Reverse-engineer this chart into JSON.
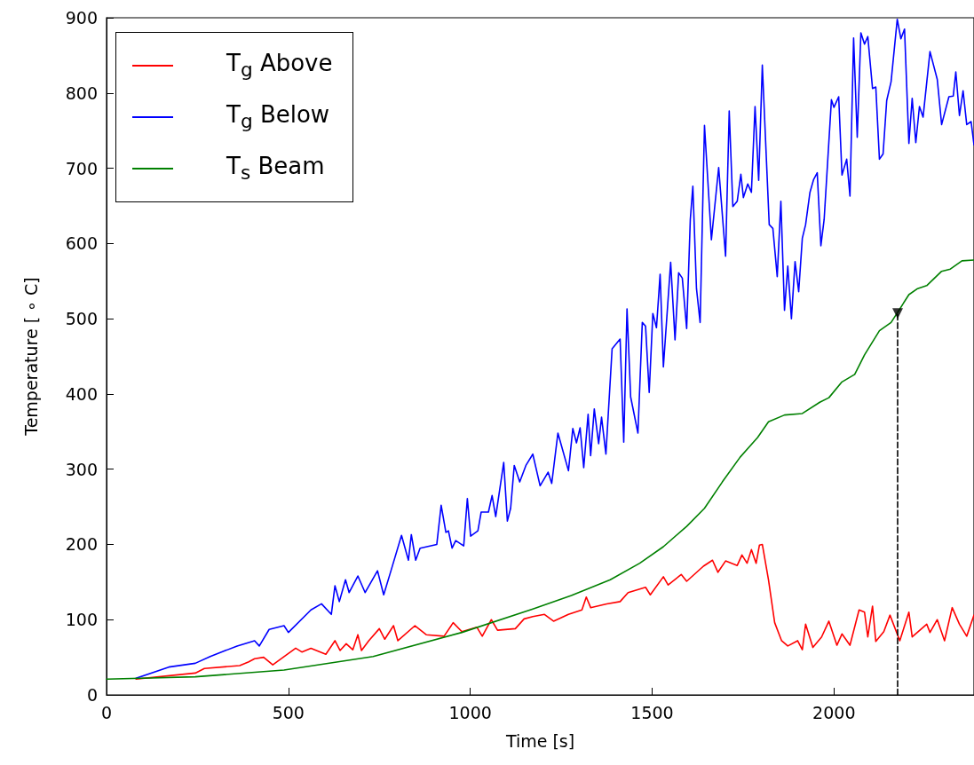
{
  "chart_data": {
    "type": "line",
    "xlabel": "Time [s]",
    "ylabel": "Temperature [ ∘ C]",
    "xlim": [
      0,
      2385
    ],
    "xticks": [
      0,
      500,
      1000,
      1500,
      2000
    ],
    "ylim": [
      0,
      900
    ],
    "yticks": [
      0,
      100,
      200,
      300,
      400,
      500,
      600,
      700,
      800,
      900
    ],
    "grid": false,
    "legend": "top left",
    "marker": "none",
    "line_style": "solid",
    "series": [
      {
        "name": "T$_{g}$ Above",
        "color": "#ff0000",
        "x": [
          81,
          244,
          269,
          366,
          391,
          407,
          432,
          457,
          520,
          537,
          562,
          603,
          628,
          642,
          659,
          677,
          691,
          701,
          721,
          750,
          765,
          789,
          801,
          848,
          879,
          928,
          953,
          977,
          1018,
          1033,
          1058,
          1075,
          1124,
          1148,
          1172,
          1204,
          1229,
          1270,
          1307,
          1319,
          1331,
          1375,
          1412,
          1434,
          1482,
          1495,
          1531,
          1544,
          1580,
          1595,
          1641,
          1666,
          1681,
          1702,
          1734,
          1747,
          1761,
          1773,
          1786,
          1795,
          1803,
          1820,
          1837,
          1856,
          1873,
          1900,
          1913,
          1922,
          1942,
          1966,
          1986,
          2008,
          2022,
          2044,
          2069,
          2084,
          2093,
          2106,
          2115,
          2137,
          2154,
          2181,
          2206,
          2215,
          2255,
          2264,
          2284,
          2304,
          2325,
          2345,
          2365,
          2385
        ],
        "values": [
          21,
          29,
          35,
          39,
          44,
          48,
          50,
          40,
          62,
          57,
          62,
          54,
          72,
          59,
          68,
          60,
          80,
          59,
          72,
          88,
          74,
          92,
          72,
          92,
          80,
          78,
          96,
          84,
          90,
          78,
          100,
          86,
          88,
          101,
          104,
          107,
          98,
          107,
          113,
          130,
          116,
          121,
          124,
          136,
          143,
          133,
          157,
          146,
          160,
          151,
          171,
          179,
          163,
          178,
          172,
          186,
          175,
          193,
          175,
          199,
          200,
          153,
          96,
          72,
          65,
          72,
          60,
          94,
          63,
          77,
          98,
          66,
          81,
          66,
          113,
          110,
          77,
          118,
          71,
          84,
          106,
          72,
          110,
          77,
          94,
          83,
          100,
          72,
          116,
          94,
          78,
          106
        ]
      },
      {
        "name": "T$_{g}$ Below",
        "color": "#0000ff",
        "x": [
          81,
          171,
          244,
          285,
          359,
          407,
          420,
          447,
          488,
          500,
          562,
          591,
          618,
          628,
          640,
          657,
          667,
          691,
          711,
          745,
          762,
          782,
          811,
          830,
          838,
          850,
          862,
          908,
          920,
          933,
          940,
          950,
          960,
          982,
          992,
          1001,
          1021,
          1030,
          1050,
          1060,
          1070,
          1092,
          1102,
          1111,
          1121,
          1136,
          1153,
          1172,
          1192,
          1214,
          1224,
          1241,
          1270,
          1282,
          1292,
          1302,
          1312,
          1324,
          1331,
          1341,
          1353,
          1361,
          1373,
          1390,
          1412,
          1422,
          1431,
          1441,
          1461,
          1473,
          1482,
          1492,
          1502,
          1512,
          1522,
          1531,
          1551,
          1563,
          1573,
          1583,
          1595,
          1605,
          1612,
          1622,
          1632,
          1644,
          1663,
          1683,
          1702,
          1712,
          1722,
          1734,
          1744,
          1751,
          1763,
          1773,
          1783,
          1793,
          1803,
          1822,
          1832,
          1844,
          1854,
          1864,
          1873,
          1883,
          1893,
          1903,
          1913,
          1922,
          1934,
          1944,
          1954,
          1964,
          1973,
          1993,
          2000,
          2013,
          2022,
          2035,
          2044,
          2054,
          2064,
          2074,
          2084,
          2093,
          2106,
          2115,
          2125,
          2135,
          2145,
          2157,
          2174,
          2184,
          2194,
          2206,
          2215,
          2225,
          2235,
          2245,
          2264,
          2284,
          2296,
          2316,
          2328,
          2335,
          2345,
          2355,
          2365,
          2377,
          2385
        ],
        "values": [
          22,
          37,
          42,
          51,
          65,
          72,
          65,
          87,
          92,
          83,
          113,
          121,
          107,
          145,
          124,
          153,
          136,
          158,
          136,
          165,
          133,
          165,
          212,
          179,
          213,
          179,
          195,
          200,
          252,
          216,
          218,
          195,
          205,
          198,
          261,
          211,
          218,
          243,
          243,
          265,
          237,
          309,
          231,
          248,
          305,
          283,
          305,
          320,
          278,
          296,
          281,
          348,
          298,
          354,
          335,
          355,
          302,
          373,
          318,
          380,
          334,
          369,
          320,
          460,
          473,
          336,
          513,
          396,
          348,
          495,
          490,
          402,
          507,
          488,
          559,
          436,
          575,
          472,
          561,
          554,
          487,
          632,
          676,
          540,
          495,
          757,
          605,
          701,
          583,
          776,
          649,
          656,
          692,
          661,
          679,
          668,
          782,
          684,
          837,
          625,
          620,
          556,
          656,
          511,
          570,
          500,
          576,
          536,
          607,
          625,
          668,
          685,
          694,
          597,
          632,
          791,
          781,
          795,
          691,
          712,
          663,
          873,
          741,
          880,
          865,
          875,
          806,
          808,
          712,
          719,
          790,
          815,
          898,
          872,
          885,
          733,
          793,
          734,
          782,
          768,
          855,
          818,
          758,
          795,
          796,
          828,
          770,
          803,
          758,
          762,
          731
        ]
      },
      {
        "name": "T$_{s}$ Beam",
        "color": "#008000",
        "x": [
          0,
          244,
          488,
          733,
          977,
          1172,
          1278,
          1385,
          1466,
          1531,
          1595,
          1644,
          1693,
          1742,
          1790,
          1820,
          1864,
          1913,
          1961,
          1986,
          2022,
          2057,
          2084,
          2125,
          2157,
          2181,
          2206,
          2230,
          2255,
          2296,
          2320,
          2352,
          2385
        ],
        "values": [
          21,
          24,
          33,
          51,
          83,
          114,
          132,
          153,
          175,
          197,
          224,
          248,
          283,
          316,
          342,
          363,
          372,
          374,
          389,
          395,
          416,
          426,
          452,
          484,
          495,
          513,
          532,
          540,
          544,
          563,
          566,
          577,
          578
        ]
      },
      {
        "color": "#000000",
        "line_style": "dashed",
        "x": [
          2175,
          2175
        ],
        "values": [
          0,
          507
        ]
      },
      {
        "type": "scatter",
        "color": "#000000",
        "marker": "triangle",
        "x": [
          2175
        ],
        "values": [
          507
        ]
      }
    ]
  }
}
